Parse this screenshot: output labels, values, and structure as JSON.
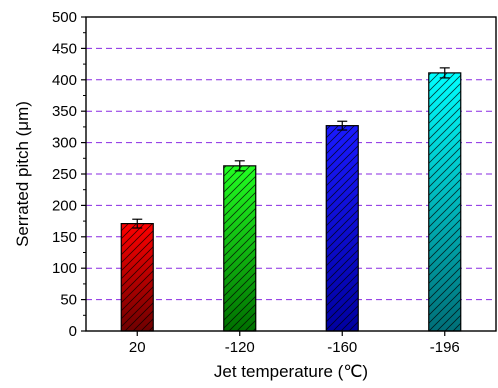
{
  "chart_data": {
    "type": "bar",
    "categories": [
      "20",
      "-120",
      "-160",
      "-196"
    ],
    "values": [
      171,
      263,
      327,
      411
    ],
    "errors": [
      7,
      8,
      7,
      8
    ],
    "bar_colors": [
      {
        "top": "#ff0000",
        "bottom": "#6e0000"
      },
      {
        "top": "#22ff22",
        "bottom": "#007000"
      },
      {
        "top": "#1a1aff",
        "bottom": "#0000a0"
      },
      {
        "top": "#00ffff",
        "bottom": "#006f78"
      }
    ],
    "hatch": "diagonal",
    "xlabel": "Jet temperature (℃)",
    "ylabel": "Serrated pitch (μm)",
    "ylim": [
      0,
      500
    ],
    "yticks": [
      "0",
      "50",
      "100",
      "150",
      "200",
      "250",
      "300",
      "350",
      "400",
      "450",
      "500"
    ],
    "grid": {
      "axis": "y",
      "style": "dashed",
      "color": "#8a2be2"
    }
  }
}
